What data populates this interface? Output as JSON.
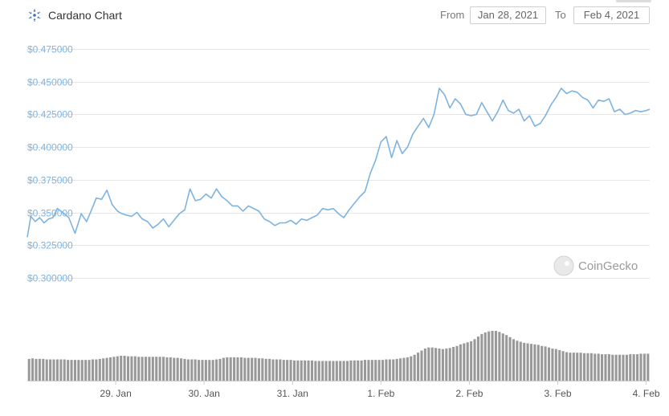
{
  "header": {
    "title": "Cardano Chart",
    "from_label": "From",
    "from_date": "Jan 28, 2021",
    "to_label": "To",
    "to_date": "Feb 4, 2021"
  },
  "watermark": "CoinGecko",
  "colors": {
    "price_line": "#7fb3df",
    "volume_bars": "#999999",
    "grid": "#e6e6e6",
    "brand": "#3d6fb4"
  },
  "chart_data": {
    "type": "line",
    "title": "Cardano Chart",
    "ylim": [
      0.295,
      0.48
    ],
    "y_ticks": [
      "$0.475000",
      "$0.450000",
      "$0.425000",
      "$0.400000",
      "$0.375000",
      "$0.350000",
      "$0.325000",
      "$0.300000"
    ],
    "y_tick_values": [
      0.475,
      0.45,
      0.425,
      0.4,
      0.375,
      0.35,
      0.325,
      0.3
    ],
    "x_ticks": [
      "29. Jan",
      "30. Jan",
      "31. Jan",
      "1. Feb",
      "2. Feb",
      "3. Feb",
      "4. Feb"
    ],
    "x_tick_positions": [
      1,
      2,
      3,
      4,
      5,
      6,
      7
    ],
    "x_range": [
      0,
      7.04
    ],
    "grid": true,
    "legend": "none",
    "series": [
      {
        "x": [
          0.0,
          0.04,
          0.09,
          0.14,
          0.19,
          0.24,
          0.29,
          0.34,
          0.4,
          0.47,
          0.54,
          0.61,
          0.67,
          0.72,
          0.78,
          0.84,
          0.9,
          0.96,
          1.02,
          1.07,
          1.12,
          1.18,
          1.24,
          1.3,
          1.36,
          1.42,
          1.48,
          1.54,
          1.6,
          1.66,
          1.72,
          1.78,
          1.84,
          1.9,
          1.96,
          2.02,
          2.08,
          2.14,
          2.2,
          2.26,
          2.32,
          2.38,
          2.44,
          2.5,
          2.56,
          2.62,
          2.68,
          2.74,
          2.8,
          2.86,
          2.92,
          2.98,
          3.04,
          3.1,
          3.16,
          3.22,
          3.28,
          3.34,
          3.4,
          3.46,
          3.52,
          3.58,
          3.64,
          3.7,
          3.76,
          3.82,
          3.88,
          3.94,
          4.0,
          4.06,
          4.12,
          4.18,
          4.24,
          4.3,
          4.36,
          4.42,
          4.48,
          4.54,
          4.6,
          4.66,
          4.72,
          4.78,
          4.84,
          4.9,
          4.96,
          5.02,
          5.08,
          5.14,
          5.2,
          5.26,
          5.32,
          5.38,
          5.44,
          5.5,
          5.56,
          5.62,
          5.68,
          5.74,
          5.8,
          5.86,
          5.92,
          5.98,
          6.04,
          6.1,
          6.16,
          6.22,
          6.28,
          6.34,
          6.4,
          6.46,
          6.52,
          6.58,
          6.64,
          6.7,
          6.76,
          6.82,
          6.88,
          6.94,
          7.0,
          7.04
        ],
        "values": [
          0.331,
          0.347,
          0.343,
          0.346,
          0.342,
          0.345,
          0.346,
          0.353,
          0.35,
          0.346,
          0.334,
          0.349,
          0.343,
          0.351,
          0.361,
          0.36,
          0.367,
          0.356,
          0.351,
          0.349,
          0.348,
          0.347,
          0.35,
          0.345,
          0.343,
          0.338,
          0.341,
          0.345,
          0.339,
          0.344,
          0.349,
          0.352,
          0.368,
          0.359,
          0.36,
          0.364,
          0.361,
          0.368,
          0.362,
          0.359,
          0.355,
          0.355,
          0.351,
          0.355,
          0.353,
          0.351,
          0.345,
          0.343,
          0.34,
          0.342,
          0.342,
          0.344,
          0.341,
          0.345,
          0.344,
          0.346,
          0.348,
          0.353,
          0.352,
          0.353,
          0.349,
          0.346,
          0.352,
          0.357,
          0.362,
          0.366,
          0.38,
          0.39,
          0.404,
          0.408,
          0.392,
          0.405,
          0.395,
          0.4,
          0.41,
          0.416,
          0.422,
          0.415,
          0.425,
          0.445,
          0.44,
          0.43,
          0.437,
          0.433,
          0.425,
          0.424,
          0.425,
          0.434,
          0.427,
          0.42,
          0.427,
          0.436,
          0.428,
          0.426,
          0.429,
          0.42,
          0.424,
          0.416,
          0.418,
          0.424,
          0.432,
          0.438,
          0.445,
          0.441,
          0.443,
          0.442,
          0.438,
          0.436,
          0.43,
          0.436,
          0.435,
          0.437,
          0.427,
          0.429,
          0.425,
          0.426,
          0.428,
          0.427,
          0.428,
          0.429
        ]
      }
    ],
    "volume": {
      "x_range": [
        0,
        7.04
      ],
      "values": [
        42,
        43,
        42,
        42,
        42,
        41,
        41,
        41,
        41,
        41,
        41,
        40,
        40,
        40,
        40,
        40,
        40,
        40,
        41,
        41,
        42,
        43,
        44,
        45,
        46,
        47,
        48,
        48,
        47,
        47,
        47,
        46,
        46,
        46,
        46,
        46,
        46,
        46,
        46,
        45,
        45,
        44,
        44,
        43,
        42,
        41,
        41,
        41,
        40,
        40,
        40,
        40,
        40,
        41,
        42,
        44,
        45,
        45,
        45,
        45,
        45,
        44,
        44,
        44,
        44,
        43,
        43,
        42,
        42,
        41,
        41,
        41,
        40,
        40,
        40,
        39,
        39,
        39,
        39,
        39,
        39,
        38,
        38,
        38,
        38,
        38,
        38,
        38,
        38,
        38,
        38,
        39,
        39,
        39,
        39,
        40,
        40,
        40,
        40,
        40,
        40,
        41,
        41,
        41,
        42,
        43,
        44,
        45,
        47,
        50,
        54,
        58,
        62,
        64,
        64,
        63,
        62,
        61,
        62,
        63,
        65,
        67,
        70,
        72,
        74,
        76,
        80,
        85,
        90,
        93,
        95,
        96,
        96,
        94,
        91,
        88,
        84,
        80,
        77,
        75,
        73,
        72,
        71,
        70,
        69,
        67,
        66,
        64,
        62,
        61,
        59,
        57,
        55,
        54,
        54,
        54,
        54,
        53,
        53,
        53,
        52,
        52,
        51,
        51,
        51,
        50,
        50,
        50,
        50,
        50,
        51,
        51,
        51,
        52,
        52,
        52
      ]
    }
  }
}
